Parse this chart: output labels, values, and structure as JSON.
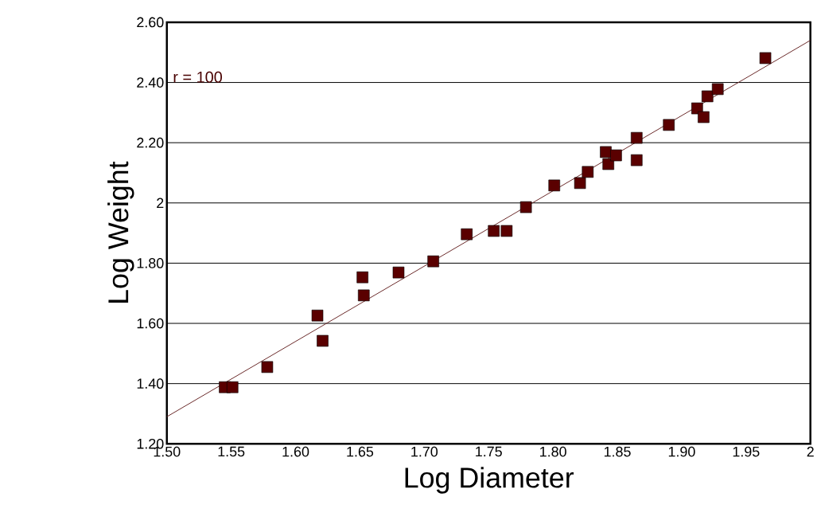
{
  "chart_data": {
    "type": "scatter",
    "xlabel": "Log Diameter",
    "ylabel": "Log Weight",
    "annotations": [
      "r = 100"
    ],
    "xlim": [
      1.5,
      2.0
    ],
    "ylim": [
      1.2,
      2.6
    ],
    "xticks": [
      {
        "value": 1.5,
        "label": "1.50"
      },
      1.55,
      {
        "value": 1.6,
        "label": "1.60"
      },
      1.65,
      {
        "value": 1.7,
        "label": "1.70"
      },
      1.75,
      {
        "value": 1.8,
        "label": "1.80"
      },
      1.85,
      {
        "value": 1.9,
        "label": "1.90"
      },
      1.95,
      2
    ],
    "yticks": [
      {
        "value": 1.2,
        "label": "1.20"
      },
      {
        "value": 1.4,
        "label": "1.40"
      },
      {
        "value": 1.6,
        "label": "1.60"
      },
      {
        "value": 1.8,
        "label": "1.80"
      },
      2,
      {
        "value": 2.2,
        "label": "2.20"
      },
      {
        "value": 2.4,
        "label": "2.40"
      },
      {
        "value": 2.6,
        "label": "2.60"
      }
    ],
    "grid": "y",
    "marker": "square",
    "series": [
      {
        "color": "#5a0000",
        "x": [
          1.545,
          1.551,
          1.578,
          1.617,
          1.621,
          1.652,
          1.653,
          1.68,
          1.707,
          1.733,
          1.754,
          1.764,
          1.779,
          1.801,
          1.821,
          1.827,
          1.841,
          1.843,
          1.849,
          1.865,
          1.865,
          1.89,
          1.912,
          1.917,
          1.92,
          1.928,
          1.965
        ],
        "values": [
          1.388,
          1.388,
          1.455,
          1.626,
          1.542,
          1.753,
          1.693,
          1.769,
          1.806,
          1.896,
          1.907,
          1.907,
          1.986,
          2.058,
          2.066,
          2.103,
          2.169,
          2.129,
          2.158,
          2.216,
          2.142,
          2.259,
          2.314,
          2.285,
          2.354,
          2.378,
          2.481
        ]
      },
      {
        "type": "line",
        "color": "#6b2a2a",
        "marker": "none",
        "line_style": "solid",
        "x": [
          1.5,
          2.0
        ],
        "values": [
          1.29,
          2.54
        ]
      }
    ]
  }
}
